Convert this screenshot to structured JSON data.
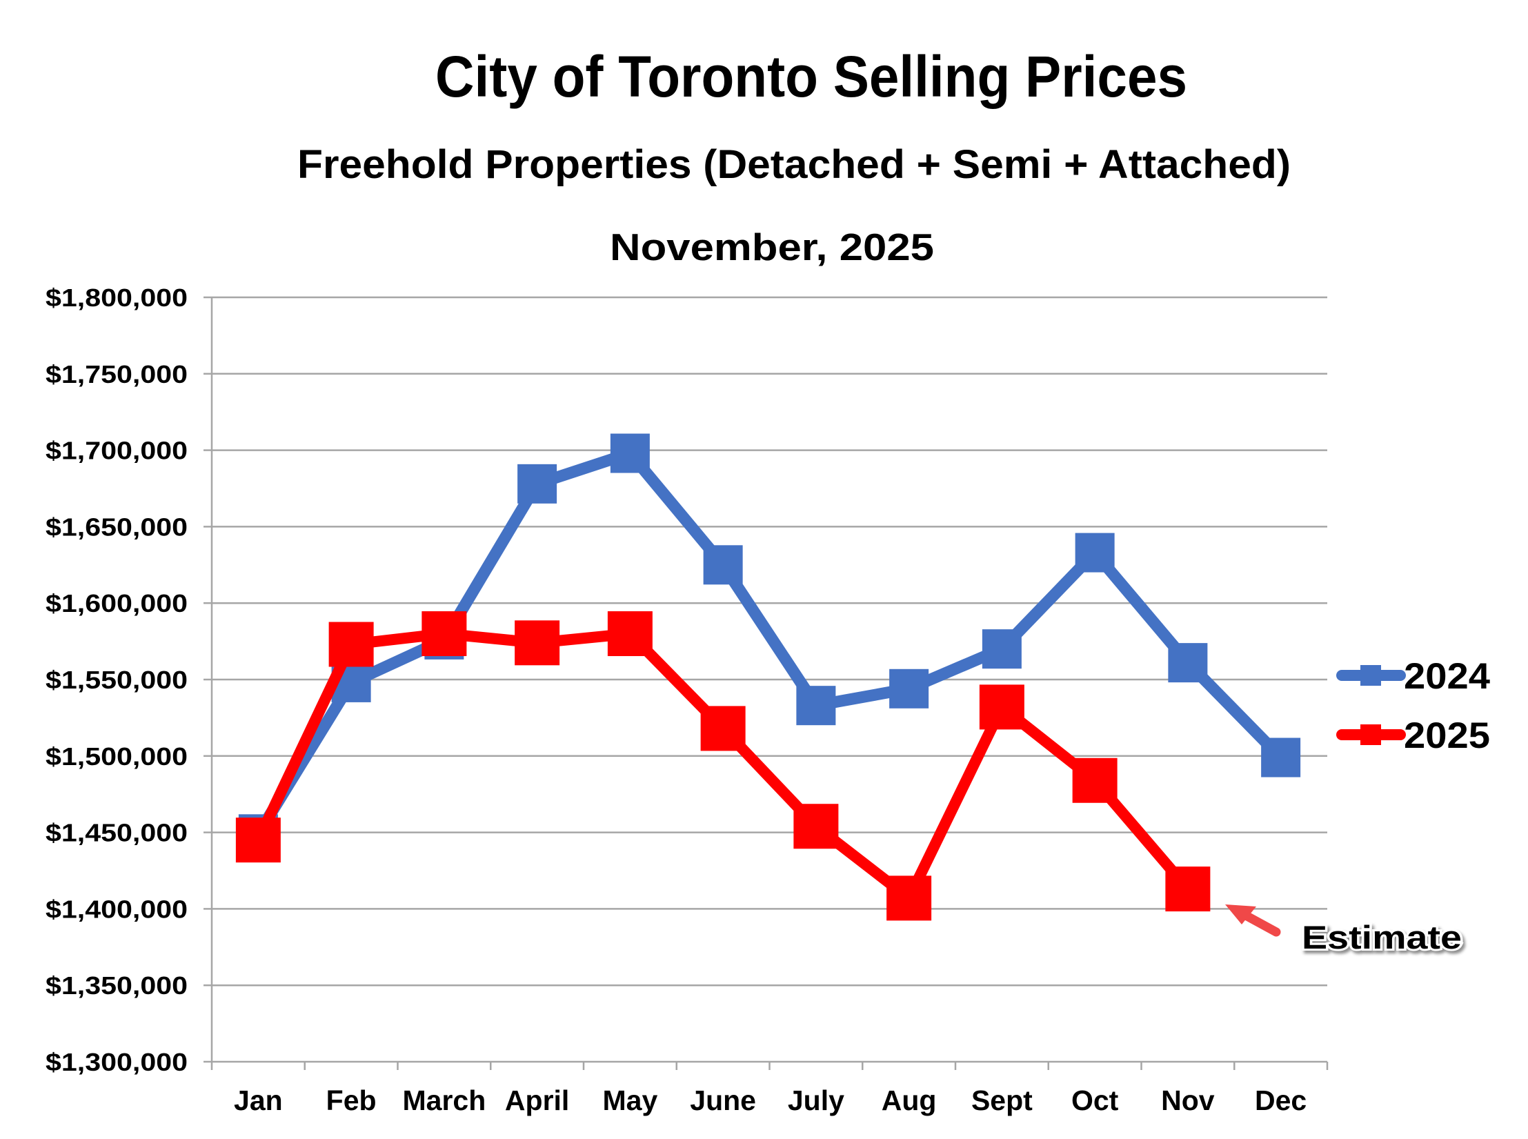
{
  "chart_data": {
    "type": "line",
    "title": "City of Toronto Selling Prices",
    "subtitle": "Freehold Properties (Detached + Semi + Attached)",
    "date_label": "November, 2025",
    "xlabel": "",
    "ylabel": "",
    "categories": [
      "Jan",
      "Feb",
      "March",
      "April",
      "May",
      "June",
      "July",
      "Aug",
      "Sept",
      "Oct",
      "Nov",
      "Dec"
    ],
    "ylim": [
      1300000,
      1800000
    ],
    "ytick_step": 50000,
    "yticks": [
      "$1,300,000",
      "$1,350,000",
      "$1,400,000",
      "$1,450,000",
      "$1,500,000",
      "$1,550,000",
      "$1,600,000",
      "$1,650,000",
      "$1,700,000",
      "$1,750,000",
      "$1,800,000"
    ],
    "grid": true,
    "legend_position": "right",
    "series": [
      {
        "name": "2024",
        "color": "#4472C4",
        "marker": "square",
        "values": [
          1449000,
          1548000,
          1576000,
          1678000,
          1698000,
          1625000,
          1533000,
          1544000,
          1570000,
          1633000,
          1561000,
          1499000
        ]
      },
      {
        "name": "2025",
        "color": "#FF0000",
        "marker": "square",
        "values": [
          1445000,
          1573000,
          1580000,
          1574000,
          1580000,
          1518000,
          1454000,
          1407000,
          1532000,
          1484000,
          1413000,
          null
        ]
      }
    ],
    "annotations": [
      {
        "text": "Estimate",
        "series": "2025",
        "category": "Nov",
        "arrow_color": "#F04848"
      }
    ]
  }
}
